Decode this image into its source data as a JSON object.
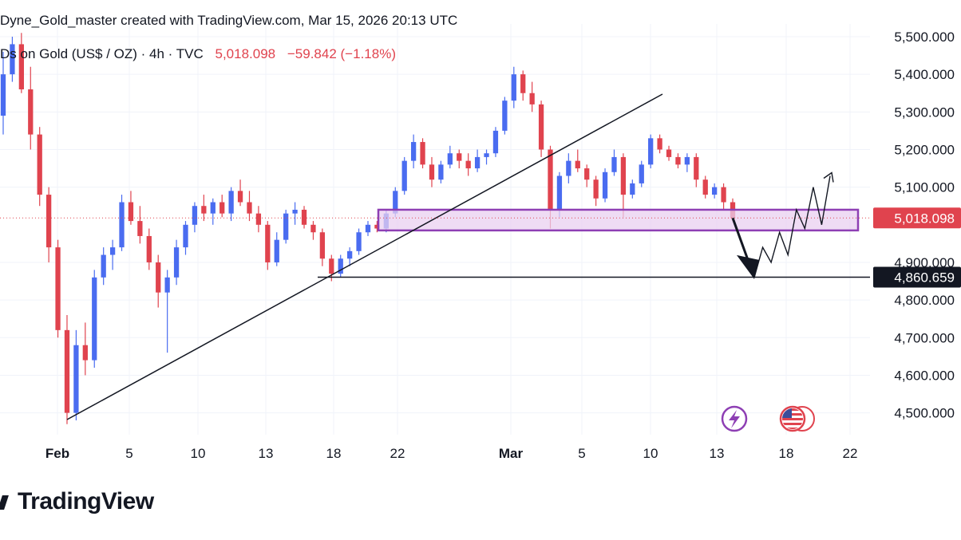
{
  "header": {
    "created_line": "Dyne_Gold_master created with TradingView.com, Mar 15, 2026 20:13 UTC",
    "symbol": "Ds on Gold (US$ / OZ) · 4h · TVC",
    "price": "5,018.098",
    "change": "−59.842 (−1.18%)"
  },
  "brand": {
    "name": "TradingView"
  },
  "colors": {
    "up": "#4a6cf0",
    "down": "#e0434e",
    "zone_fill": "#e9d0f0",
    "zone_border": "#8e3fb4",
    "price_label_bg": "#e0434e",
    "level_label_bg": "#131722",
    "icon_purple": "#8e3fb4"
  },
  "chart_data": {
    "type": "candlestick",
    "timeframe": "4h",
    "price_axis": {
      "ticks": [
        "5,500.000",
        "5,400.000",
        "5,300.000",
        "5,200.000",
        "5,100.000",
        "4,900.000",
        "4,800.000",
        "4,700.000",
        "4,600.000",
        "4,500.000"
      ],
      "ylim": [
        4460,
        5510
      ]
    },
    "time_axis": {
      "ticks": [
        "Feb",
        "5",
        "10",
        "13",
        "18",
        "22",
        "Mar",
        "5",
        "10",
        "13",
        "18",
        "22"
      ]
    },
    "candles_ohlc_approx": [
      [
        5290,
        5460,
        5240,
        5400
      ],
      [
        5400,
        5500,
        5380,
        5480
      ],
      [
        5480,
        5510,
        5350,
        5360
      ],
      [
        5360,
        5420,
        5200,
        5240
      ],
      [
        5240,
        5260,
        5050,
        5080
      ],
      [
        5080,
        5100,
        4900,
        4940
      ],
      [
        4940,
        4960,
        4700,
        4720
      ],
      [
        4720,
        4760,
        4470,
        4500
      ],
      [
        4500,
        4720,
        4480,
        4680
      ],
      [
        4680,
        4740,
        4600,
        4640
      ],
      [
        4640,
        4880,
        4620,
        4860
      ],
      [
        4860,
        4940,
        4840,
        4920
      ],
      [
        4920,
        4960,
        4880,
        4940
      ],
      [
        4940,
        5080,
        4930,
        5060
      ],
      [
        5060,
        5090,
        5000,
        5010
      ],
      [
        5010,
        5050,
        4950,
        4970
      ],
      [
        4970,
        4990,
        4880,
        4900
      ],
      [
        4900,
        4920,
        4780,
        4820
      ],
      [
        4820,
        4880,
        4660,
        4860
      ],
      [
        4860,
        4960,
        4840,
        4940
      ],
      [
        4940,
        5010,
        4920,
        5000
      ],
      [
        5000,
        5060,
        4980,
        5050
      ],
      [
        5050,
        5080,
        5010,
        5030
      ],
      [
        5030,
        5070,
        5000,
        5060
      ],
      [
        5060,
        5080,
        5020,
        5030
      ],
      [
        5030,
        5100,
        5010,
        5090
      ],
      [
        5090,
        5120,
        5050,
        5060
      ],
      [
        5060,
        5090,
        5010,
        5030
      ],
      [
        5030,
        5050,
        4980,
        5000
      ],
      [
        5000,
        5010,
        4880,
        4900
      ],
      [
        4900,
        4980,
        4890,
        4960
      ],
      [
        4960,
        5040,
        4950,
        5030
      ],
      [
        5030,
        5060,
        5000,
        5040
      ],
      [
        5040,
        5050,
        4990,
        5000
      ],
      [
        5000,
        5010,
        4960,
        4980
      ],
      [
        4980,
        4990,
        4890,
        4910
      ],
      [
        4910,
        4920,
        4850,
        4870
      ],
      [
        4870,
        4920,
        4860,
        4910
      ],
      [
        4910,
        4940,
        4890,
        4930
      ],
      [
        4930,
        4990,
        4920,
        4980
      ],
      [
        4980,
        5010,
        4970,
        5000
      ],
      [
        5000,
        5010,
        4980,
        4990
      ],
      [
        4990,
        5040,
        4980,
        5030
      ],
      [
        5030,
        5100,
        5020,
        5090
      ],
      [
        5090,
        5180,
        5080,
        5170
      ],
      [
        5170,
        5240,
        5150,
        5220
      ],
      [
        5220,
        5230,
        5150,
        5160
      ],
      [
        5160,
        5180,
        5100,
        5120
      ],
      [
        5120,
        5170,
        5110,
        5160
      ],
      [
        5160,
        5210,
        5150,
        5190
      ],
      [
        5190,
        5200,
        5150,
        5170
      ],
      [
        5170,
        5190,
        5130,
        5150
      ],
      [
        5150,
        5200,
        5140,
        5180
      ],
      [
        5180,
        5200,
        5160,
        5190
      ],
      [
        5190,
        5260,
        5180,
        5250
      ],
      [
        5250,
        5340,
        5240,
        5330
      ],
      [
        5330,
        5420,
        5310,
        5400
      ],
      [
        5400,
        5410,
        5330,
        5350
      ],
      [
        5350,
        5380,
        5300,
        5320
      ],
      [
        5320,
        5330,
        5180,
        5200
      ],
      [
        5200,
        5210,
        4990,
        5040
      ],
      [
        5040,
        5140,
        5020,
        5130
      ],
      [
        5130,
        5190,
        5110,
        5170
      ],
      [
        5170,
        5200,
        5140,
        5150
      ],
      [
        5150,
        5160,
        5100,
        5120
      ],
      [
        5120,
        5130,
        5050,
        5070
      ],
      [
        5070,
        5150,
        5060,
        5140
      ],
      [
        5140,
        5200,
        5130,
        5180
      ],
      [
        5180,
        5190,
        5020,
        5080
      ],
      [
        5080,
        5120,
        5070,
        5110
      ],
      [
        5110,
        5170,
        5100,
        5160
      ],
      [
        5160,
        5240,
        5150,
        5230
      ],
      [
        5230,
        5240,
        5190,
        5200
      ],
      [
        5200,
        5210,
        5170,
        5180
      ],
      [
        5180,
        5190,
        5150,
        5160
      ],
      [
        5160,
        5190,
        5140,
        5180
      ],
      [
        5180,
        5190,
        5100,
        5120
      ],
      [
        5120,
        5130,
        5070,
        5080
      ],
      [
        5080,
        5110,
        5070,
        5100
      ],
      [
        5100,
        5110,
        5040,
        5060
      ],
      [
        5060,
        5070,
        5010,
        5018
      ]
    ],
    "annotations": {
      "trendline": {
        "from": [
          "Feb",
          4480
        ],
        "to": [
          "Mar 10",
          5340
        ]
      },
      "supply_demand_zone": {
        "from": "Feb 22",
        "to": "Mar 22",
        "low": 4985,
        "high": 5040
      },
      "support_level": 4860.659,
      "current_price": 5018.098,
      "projected_path": [
        5018,
        4860,
        4940,
        4900,
        4980,
        4920,
        5040,
        4990,
        5100,
        5000,
        5130
      ]
    },
    "price_labels": {
      "current": "5,018.098",
      "level": "4,860.659"
    }
  }
}
